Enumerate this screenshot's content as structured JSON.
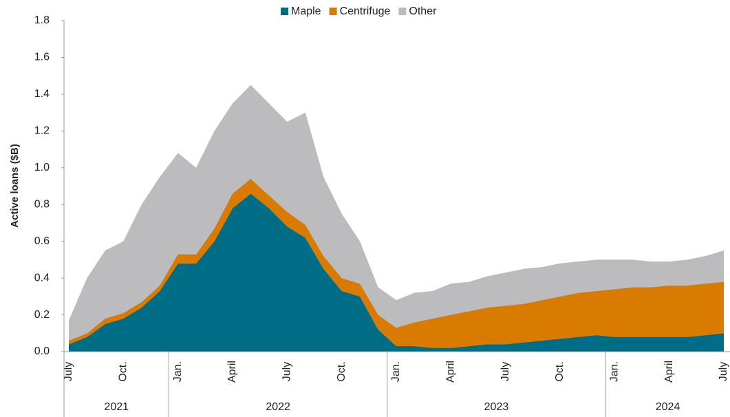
{
  "chart_data": {
    "type": "stacked_area",
    "y_label": "Active loans ($B)",
    "x": [
      "2021-07",
      "2021-08",
      "2021-09",
      "2021-10",
      "2021-11",
      "2021-12",
      "2022-01",
      "2022-02",
      "2022-03",
      "2022-04",
      "2022-05",
      "2022-06",
      "2022-07",
      "2022-08",
      "2022-09",
      "2022-10",
      "2022-11",
      "2022-12",
      "2023-01",
      "2023-02",
      "2023-03",
      "2023-04",
      "2023-05",
      "2023-06",
      "2023-07",
      "2023-08",
      "2023-09",
      "2023-10",
      "2023-11",
      "2023-12",
      "2024-01",
      "2024-02",
      "2024-03",
      "2024-04",
      "2024-05",
      "2024-06",
      "2024-07"
    ],
    "series": [
      {
        "name": "Maple",
        "color": "#006d86",
        "values": [
          0.04,
          0.08,
          0.15,
          0.18,
          0.24,
          0.33,
          0.48,
          0.48,
          0.6,
          0.78,
          0.86,
          0.78,
          0.68,
          0.62,
          0.45,
          0.33,
          0.3,
          0.12,
          0.03,
          0.03,
          0.02,
          0.02,
          0.03,
          0.04,
          0.04,
          0.05,
          0.06,
          0.07,
          0.08,
          0.09,
          0.08,
          0.08,
          0.08,
          0.08,
          0.08,
          0.09,
          0.1
        ]
      },
      {
        "name": "Centrifuge",
        "color": "#d97b00",
        "values": [
          0.02,
          0.02,
          0.03,
          0.03,
          0.03,
          0.03,
          0.05,
          0.05,
          0.07,
          0.08,
          0.08,
          0.07,
          0.08,
          0.07,
          0.07,
          0.07,
          0.07,
          0.08,
          0.1,
          0.13,
          0.16,
          0.18,
          0.19,
          0.2,
          0.21,
          0.21,
          0.22,
          0.23,
          0.24,
          0.24,
          0.26,
          0.27,
          0.27,
          0.28,
          0.28,
          0.28,
          0.28
        ]
      },
      {
        "name": "Other",
        "color": "#bcbcbe",
        "values": [
          0.11,
          0.3,
          0.37,
          0.39,
          0.53,
          0.59,
          0.55,
          0.47,
          0.53,
          0.49,
          0.51,
          0.5,
          0.49,
          0.61,
          0.43,
          0.35,
          0.23,
          0.15,
          0.15,
          0.16,
          0.15,
          0.17,
          0.16,
          0.17,
          0.18,
          0.19,
          0.18,
          0.18,
          0.17,
          0.17,
          0.16,
          0.15,
          0.14,
          0.13,
          0.14,
          0.15,
          0.17
        ]
      }
    ],
    "xlim": [
      "2021-07",
      "2024-07"
    ],
    "xticks": [
      {
        "value": "2021-07",
        "label": "July"
      },
      {
        "value": "2021-10",
        "label": "Oct."
      },
      {
        "value": "2022-01",
        "label": "Jan."
      },
      {
        "value": "2022-04",
        "label": "April"
      },
      {
        "value": "2022-07",
        "label": "July"
      },
      {
        "value": "2022-10",
        "label": "Oct."
      },
      {
        "value": "2023-01",
        "label": "Jan."
      },
      {
        "value": "2023-04",
        "label": "April"
      },
      {
        "value": "2023-07",
        "label": "July"
      },
      {
        "value": "2023-10",
        "label": "Oct."
      },
      {
        "value": "2024-01",
        "label": "Jan."
      },
      {
        "value": "2024-04",
        "label": "April"
      },
      {
        "value": "2024-07",
        "label": "July"
      }
    ],
    "years": [
      "2021",
      "2022",
      "2023",
      "2024"
    ],
    "ylim": [
      0,
      1.8
    ],
    "yticks": [
      {
        "value": 0,
        "label": "0.0"
      },
      0.2,
      0.4,
      0.6,
      0.8,
      {
        "value": 1,
        "label": "1.0"
      },
      1.2,
      1.4,
      1.6,
      1.8
    ],
    "legend": "top"
  }
}
